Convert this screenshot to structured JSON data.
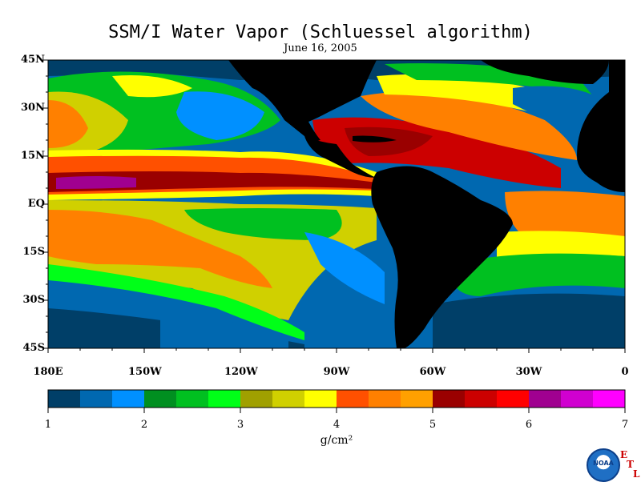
{
  "title": "SSM/I Water Vapor (Schluessel algorithm)",
  "subtitle": "June 16, 2005",
  "lat_labels": [
    "45N",
    "30N",
    "15N",
    "EQ",
    "15S",
    "30S",
    "45S"
  ],
  "lon_labels": [
    "180E",
    "150W",
    "120W",
    "90W",
    "60W",
    "30W",
    "0"
  ],
  "colorbar": {
    "tick_labels": [
      "1",
      "2",
      "3",
      "4",
      "5",
      "6",
      "7"
    ],
    "units": "g/cm²",
    "colors": [
      "#003f68",
      "#0068b0",
      "#0090ff",
      "#008f20",
      "#00c020",
      "#00ff18",
      "#a0a000",
      "#d0d000",
      "#ffff00",
      "#ff5000",
      "#ff8000",
      "#ffa000",
      "#9a0000",
      "#cc0000",
      "#ff0000",
      "#a00090",
      "#d000d0",
      "#ff00ff"
    ]
  },
  "land_color": "#000000",
  "logo": {
    "agency": "NOAA",
    "letters": [
      "E",
      "T",
      "L"
    ]
  }
}
